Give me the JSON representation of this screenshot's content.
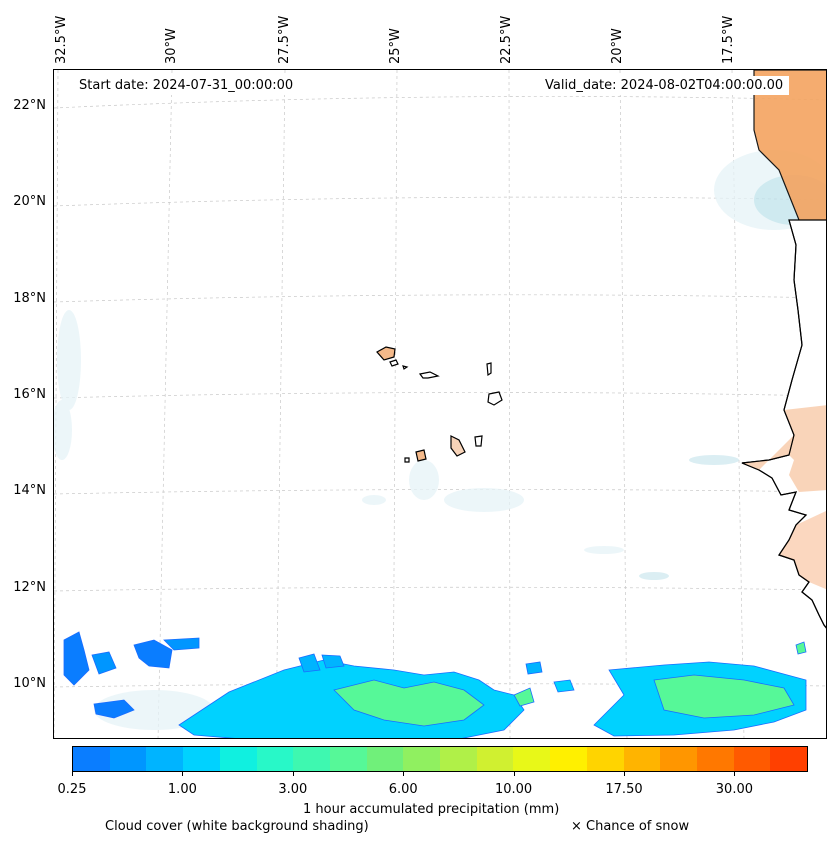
{
  "header": {
    "start_date": "Start date: 2024-07-31_00:00:00",
    "valid_date": "Valid_date: 2024-08-02T04:00:00.00"
  },
  "map": {
    "lon_labels": [
      "32.5°W",
      "30°W",
      "27.5°W",
      "25°W",
      "22.5°W",
      "20°W",
      "17.5°W"
    ],
    "lat_labels": [
      "22°N",
      "20°N",
      "18°N",
      "16°N",
      "14°N",
      "12°N",
      "10°N"
    ]
  },
  "colorbar": {
    "colors": [
      "#0a7dff",
      "#0096ff",
      "#00b4ff",
      "#00d2ff",
      "#10f0e0",
      "#28f8c8",
      "#3ef8b0",
      "#56f898",
      "#70f07a",
      "#90f060",
      "#b0f048",
      "#d0f030",
      "#e8f818",
      "#fff000",
      "#ffd400",
      "#ffb400",
      "#ff9600",
      "#ff7800",
      "#ff5a00",
      "#ff4000"
    ],
    "tick_labels": [
      "0.25",
      "1.00",
      "3.00",
      "6.00",
      "10.00",
      "17.50",
      "30.00"
    ],
    "label": "1 hour accumulated precipitation (mm)"
  },
  "legend": {
    "cloud_cover": "Cloud cover (white background shading)",
    "snow": "× Chance of snow"
  }
}
